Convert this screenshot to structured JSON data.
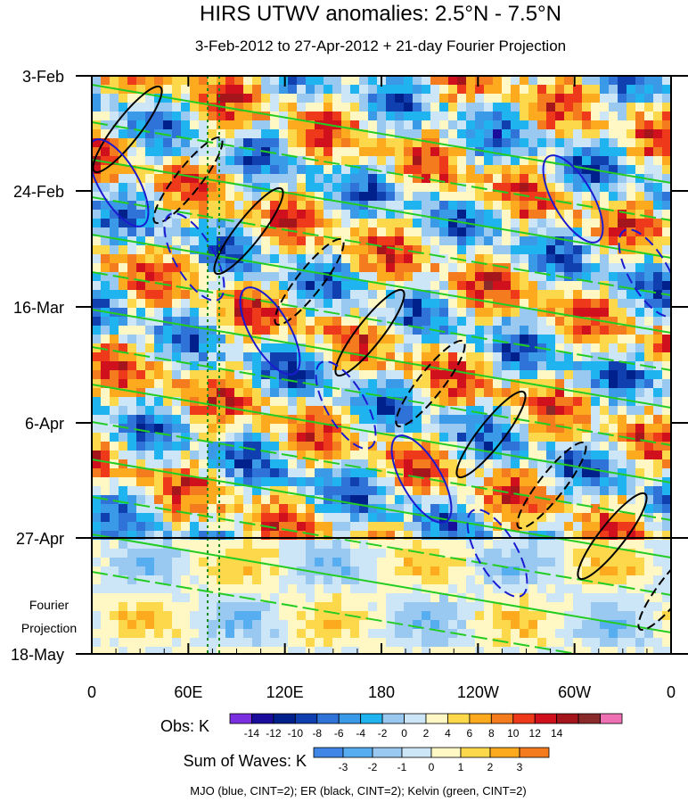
{
  "chart_data": {
    "type": "heatmap",
    "title": "HIRS UTWV anomalies: 2.5°N - 7.5°N",
    "subtitle": "3-Feb-2012 to 27-Apr-2012 + 21-day Fourier Projection",
    "x_axis": {
      "ticks": [
        "0",
        "60E",
        "120E",
        "180",
        "120W",
        "60W",
        "0"
      ],
      "tick_values_deg_east": [
        0,
        60,
        120,
        180,
        240,
        300,
        360
      ]
    },
    "y_axis": {
      "ticks": [
        "3-Feb",
        "24-Feb",
        "16-Mar",
        "6-Apr",
        "27-Apr",
        "18-May"
      ],
      "observed_end": "27-Apr",
      "projection_label": [
        "Fourier",
        "Projection"
      ]
    },
    "vertical_reference_lines_deg_east": [
      72,
      79
    ],
    "obs_colorbar": {
      "label": "Obs: K",
      "ticks": [
        "-14",
        "-12",
        "-10",
        "-8",
        "-6",
        "-4",
        "-2",
        "0",
        "2",
        "4",
        "6",
        "8",
        "10",
        "12",
        "14"
      ],
      "colors": [
        "#7a2fe0",
        "#1a0d9c",
        "#00218c",
        "#1040b0",
        "#2f72d8",
        "#3a9ae8",
        "#1fb4f0",
        "#99c8f0",
        "#cde6f7",
        "#fff8c4",
        "#fdd84b",
        "#fdaa1f",
        "#f57c1e",
        "#ee3a1a",
        "#d0101c",
        "#a5151c",
        "#8a2a2a",
        "#f070b4"
      ]
    },
    "waves_colorbar": {
      "label": "Sum of Waves: K",
      "ticks": [
        "-3",
        "-2",
        "-1",
        "0",
        "1",
        "2",
        "3"
      ],
      "colors": [
        "#3f86e6",
        "#56aef0",
        "#99c8f0",
        "#cde6f7",
        "#fff8c4",
        "#fdd84b",
        "#fdaa1f",
        "#f57c1e"
      ]
    },
    "legend_text": "MJO (blue, CINT=2); ER (black, CINT=2); Kelvin (green, CINT=2)",
    "overlays": [
      {
        "name": "MJO",
        "color": "#1a1ad0"
      },
      {
        "name": "ER",
        "color": "#000000"
      },
      {
        "name": "Kelvin",
        "color": "#22cc22"
      }
    ]
  }
}
